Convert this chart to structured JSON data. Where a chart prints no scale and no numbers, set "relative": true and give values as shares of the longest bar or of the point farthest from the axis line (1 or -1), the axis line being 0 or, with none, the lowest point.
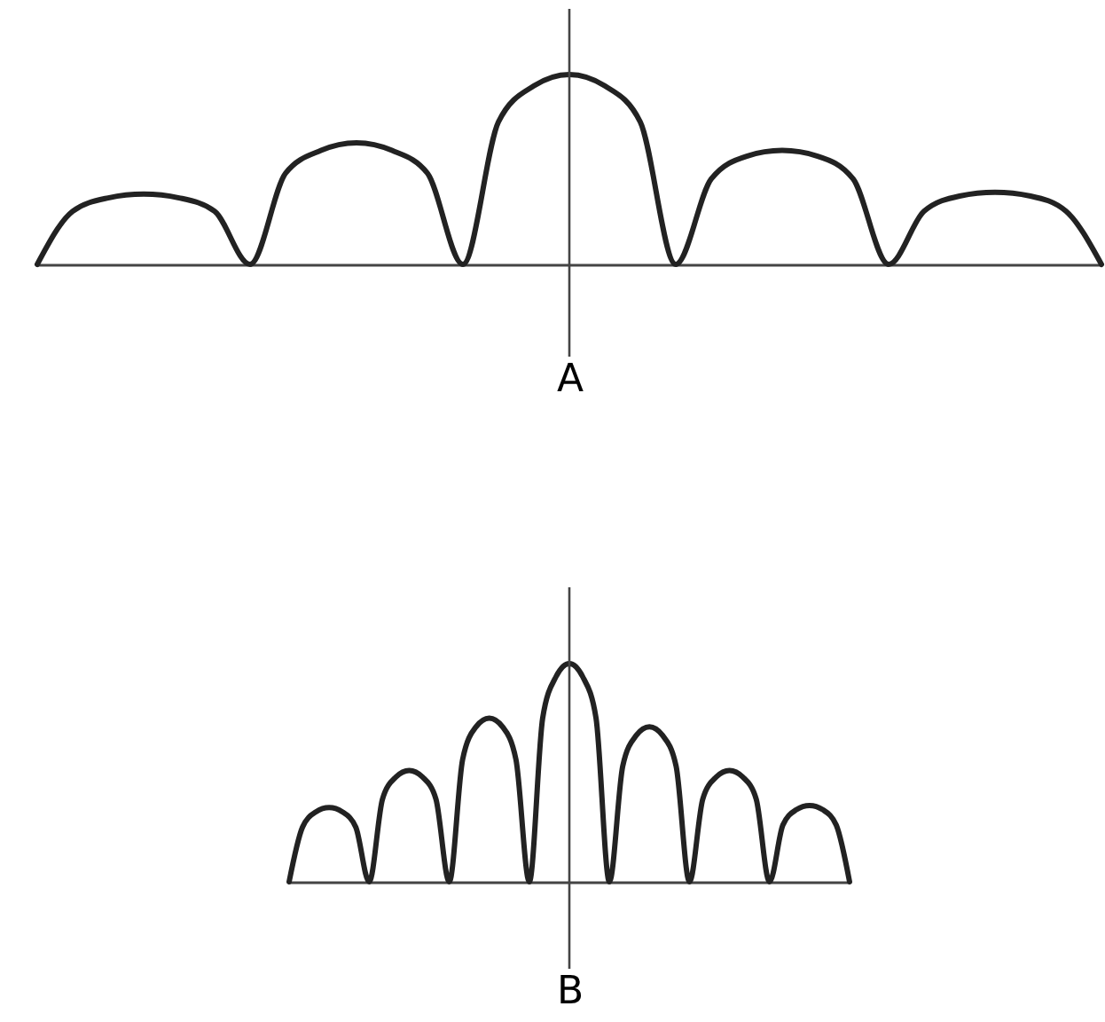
{
  "chart_data": [
    {
      "type": "line",
      "relative": true,
      "xlabel": "A",
      "color": "#222222",
      "tick_labels": false,
      "grid": false,
      "marker": "none",
      "line_style": "solid",
      "categories": [
        null,
        null,
        null,
        null,
        null,
        null,
        null,
        null,
        null,
        null,
        null,
        null,
        null,
        null,
        null,
        null,
        null,
        null,
        null,
        null,
        null,
        null,
        null,
        null,
        null,
        null,
        null,
        null,
        null,
        null,
        null
      ],
      "values": [
        0,
        0.28,
        0.35,
        0.37,
        0.35,
        0.28,
        0,
        0.48,
        0.6,
        0.64,
        0.6,
        0.48,
        0,
        0.75,
        0.94,
        1,
        0.94,
        0.75,
        0,
        0.45,
        0.57,
        0.6,
        0.57,
        0.45,
        0,
        0.28,
        0.36,
        0.38,
        0.36,
        0.28,
        0
      ]
    },
    {
      "type": "line",
      "relative": true,
      "xlabel": "B",
      "color": "#222222",
      "tick_labels": false,
      "grid": false,
      "marker": "none",
      "line_style": "solid",
      "categories": [
        null,
        null,
        null,
        null,
        null,
        null,
        null,
        null,
        null,
        null,
        null,
        null,
        null,
        null,
        null,
        null,
        null,
        null,
        null,
        null,
        null,
        null,
        null,
        null,
        null,
        null,
        null,
        null,
        null,
        null,
        null,
        null,
        null,
        null,
        null,
        null,
        null,
        null,
        null,
        null,
        null,
        null,
        null
      ],
      "values": [
        0,
        0.25,
        0.32,
        0.34,
        0.32,
        0.25,
        0,
        0.38,
        0.48,
        0.51,
        0.48,
        0.38,
        0,
        0.56,
        0.71,
        0.75,
        0.71,
        0.56,
        0,
        0.75,
        0.94,
        1,
        0.94,
        0.75,
        0,
        0.53,
        0.67,
        0.71,
        0.67,
        0.53,
        0,
        0.38,
        0.48,
        0.51,
        0.48,
        0.38,
        0,
        0.26,
        0.33,
        0.35,
        0.33,
        0.26,
        0
      ]
    }
  ]
}
